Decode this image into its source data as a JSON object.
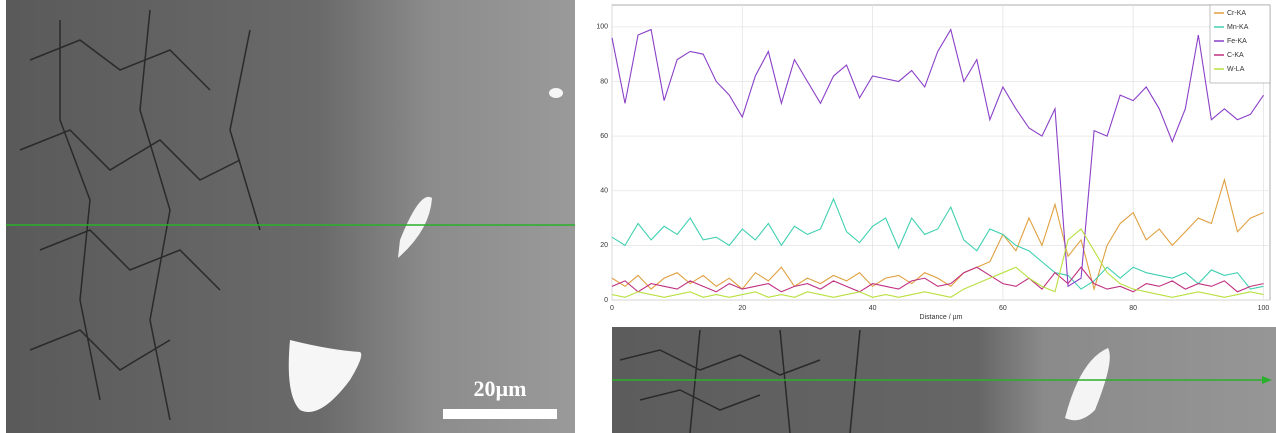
{
  "chart_data": {
    "type": "line",
    "xlabel": "Distance / µm",
    "x": [
      0,
      2,
      4,
      6,
      8,
      10,
      12,
      14,
      16,
      18,
      20,
      22,
      24,
      26,
      28,
      30,
      32,
      34,
      36,
      38,
      40,
      42,
      44,
      46,
      48,
      50,
      52,
      54,
      56,
      58,
      60,
      62,
      64,
      66,
      68,
      70,
      72,
      74,
      76,
      78,
      80,
      82,
      84,
      86,
      88,
      90,
      92,
      94,
      96,
      98,
      100
    ],
    "series": [
      {
        "name": "Cr-KA",
        "color": "#e0a040",
        "values": [
          8,
          5,
          9,
          4,
          8,
          10,
          6,
          9,
          5,
          8,
          4,
          10,
          7,
          12,
          5,
          8,
          6,
          9,
          7,
          10,
          5,
          8,
          9,
          6,
          10,
          8,
          5,
          10,
          12,
          14,
          24,
          18,
          30,
          20,
          35,
          16,
          22,
          4,
          20,
          28,
          32,
          22,
          26,
          20,
          25,
          30,
          28,
          44,
          25,
          30,
          32
        ]
      },
      {
        "name": "Mn-KA",
        "color": "#40d0b0",
        "values": [
          23,
          20,
          28,
          22,
          27,
          24,
          30,
          22,
          23,
          20,
          26,
          22,
          28,
          20,
          27,
          24,
          26,
          37,
          25,
          21,
          27,
          30,
          19,
          30,
          24,
          26,
          34,
          22,
          18,
          26,
          24,
          20,
          18,
          14,
          10,
          9,
          4,
          7,
          12,
          8,
          12,
          10,
          9,
          8,
          10,
          6,
          11,
          9,
          10,
          4,
          5
        ]
      },
      {
        "name": "Fe-KA",
        "color": "#8a40c8",
        "values": [
          96,
          72,
          97,
          99,
          73,
          88,
          91,
          90,
          80,
          75,
          67,
          82,
          91,
          72,
          88,
          80,
          72,
          82,
          86,
          74,
          82,
          81,
          80,
          84,
          78,
          91,
          99,
          80,
          88,
          66,
          78,
          70,
          63,
          60,
          70,
          5,
          8,
          62,
          60,
          75,
          73,
          78,
          70,
          58,
          70,
          97,
          66,
          70,
          66,
          68,
          75
        ]
      },
      {
        "name": "C-KA",
        "color": "#c03080",
        "values": [
          5,
          7,
          3,
          6,
          5,
          4,
          7,
          5,
          3,
          6,
          4,
          5,
          6,
          3,
          5,
          6,
          4,
          7,
          5,
          3,
          6,
          5,
          4,
          7,
          8,
          5,
          6,
          10,
          12,
          9,
          6,
          5,
          8,
          4,
          10,
          6,
          12,
          6,
          4,
          5,
          3,
          6,
          5,
          7,
          4,
          6,
          5,
          7,
          3,
          5,
          6
        ]
      },
      {
        "name": "W-LA",
        "color": "#b8e040",
        "values": [
          2,
          1,
          3,
          2,
          1,
          2,
          3,
          1,
          2,
          1,
          2,
          3,
          1,
          2,
          1,
          3,
          2,
          1,
          2,
          3,
          1,
          2,
          1,
          2,
          3,
          2,
          1,
          4,
          6,
          8,
          10,
          12,
          8,
          5,
          3,
          22,
          26,
          18,
          10,
          6,
          4,
          3,
          2,
          1,
          2,
          3,
          2,
          1,
          2,
          3,
          2
        ]
      }
    ],
    "xlim": [
      0,
      101
    ],
    "ylim": [
      0,
      108
    ],
    "xticks": [
      0,
      20,
      40,
      60,
      80,
      100
    ],
    "yticks": [
      0,
      20,
      40,
      60,
      80,
      100
    ],
    "grid": true,
    "legend": "top-right"
  },
  "micrograph": {
    "scale_bar_label": "20µm"
  }
}
